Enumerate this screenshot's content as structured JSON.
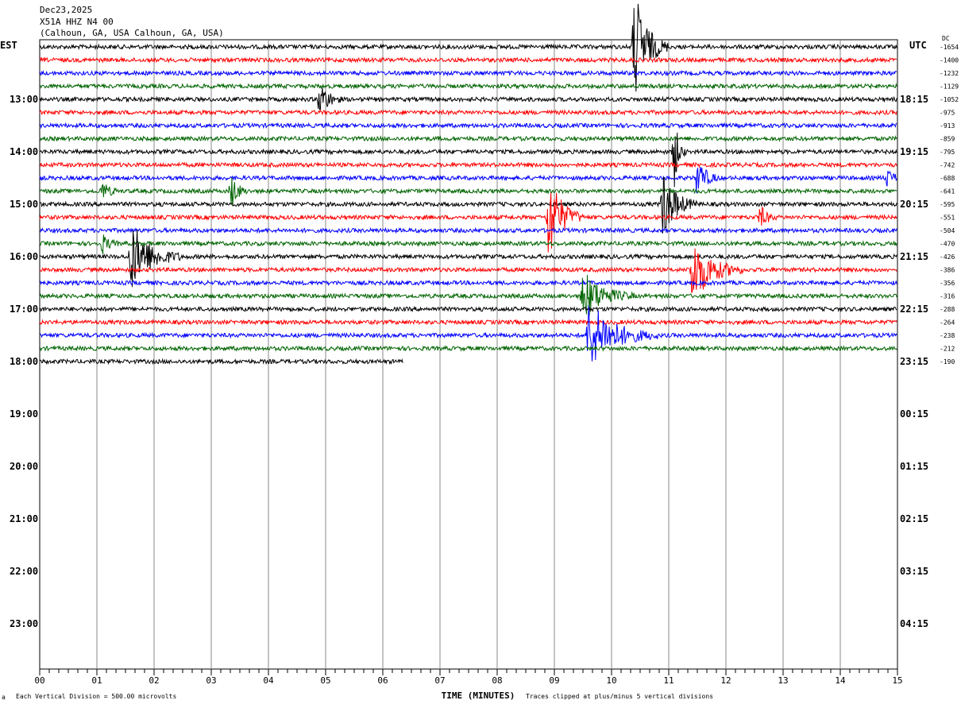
{
  "header": {
    "date": "Dec23,2025",
    "station": "X51A HHZ N4 00",
    "location": "(Calhoun, GA, USA Calhoun, GA, USA)",
    "left_zone": "EST",
    "right_zone": "UTC",
    "dc_label": "DC"
  },
  "footer": {
    "scale_note": "Each Vertical Division =  500.00 microvolts",
    "clip_note": "Traces clipped at plus/minus 5 vertical divisions",
    "corner_mark": "a"
  },
  "chart_data": {
    "type": "helicorder",
    "xlabel": "TIME (MINUTES)",
    "xlim": [
      0,
      15
    ],
    "x_tick_labels": [
      "00",
      "01",
      "02",
      "03",
      "04",
      "05",
      "06",
      "07",
      "08",
      "09",
      "10",
      "11",
      "12",
      "13",
      "14",
      "15"
    ],
    "rows_per_hour": 4,
    "first_row_hour_est": 12,
    "total_rows": 25,
    "last_row_end_minute": 6.35,
    "trace_colors": [
      "#000000",
      "#ff0000",
      "#0000ff",
      "#006400"
    ],
    "est_hour_labels": [
      "13:00",
      "14:00",
      "15:00",
      "16:00",
      "17:00",
      "18:00",
      "19:00",
      "20:00",
      "21:00",
      "22:00",
      "23:00"
    ],
    "utc_hour_labels": [
      "18:15",
      "19:15",
      "20:15",
      "21:15",
      "22:15",
      "23:15",
      "00:15",
      "01:15",
      "02:15",
      "03:15",
      "04:15"
    ],
    "dc_offsets": [
      "-1654",
      "-1400",
      "-1232",
      "-1129",
      "-1052",
      "-975",
      "-913",
      "-859",
      "-795",
      "-742",
      "-688",
      "-641",
      "-595",
      "-551",
      "-504",
      "-470",
      "-426",
      "-386",
      "-356",
      "-316",
      "-288",
      "-264",
      "-238",
      "-212",
      "-190"
    ],
    "events": [
      {
        "row": 0,
        "minute": 10.4,
        "amplitude": 5,
        "duration": 0.6
      },
      {
        "row": 4,
        "minute": 4.9,
        "amplitude": 1.6,
        "duration": 0.4
      },
      {
        "row": 8,
        "minute": 11.1,
        "amplitude": 3,
        "duration": 0.2
      },
      {
        "row": 10,
        "minute": 11.5,
        "amplitude": 1.7,
        "duration": 0.4
      },
      {
        "row": 10,
        "minute": 14.8,
        "amplitude": 0.9,
        "duration": 0.3
      },
      {
        "row": 11,
        "minute": 1.1,
        "amplitude": 0.8,
        "duration": 0.3
      },
      {
        "row": 11,
        "minute": 3.35,
        "amplitude": 1.5,
        "duration": 0.3
      },
      {
        "row": 12,
        "minute": 10.9,
        "amplitude": 3,
        "duration": 0.6
      },
      {
        "row": 13,
        "minute": 8.9,
        "amplitude": 4,
        "duration": 0.6
      },
      {
        "row": 13,
        "minute": 12.6,
        "amplitude": 1,
        "duration": 0.3
      },
      {
        "row": 15,
        "minute": 1.1,
        "amplitude": 0.8,
        "duration": 0.3
      },
      {
        "row": 16,
        "minute": 1.6,
        "amplitude": 3,
        "duration": 0.9
      },
      {
        "row": 17,
        "minute": 11.4,
        "amplitude": 3,
        "duration": 0.9
      },
      {
        "row": 19,
        "minute": 9.5,
        "amplitude": 2.2,
        "duration": 0.9
      },
      {
        "row": 22,
        "minute": 9.6,
        "amplitude": 3,
        "duration": 1.2
      }
    ]
  }
}
